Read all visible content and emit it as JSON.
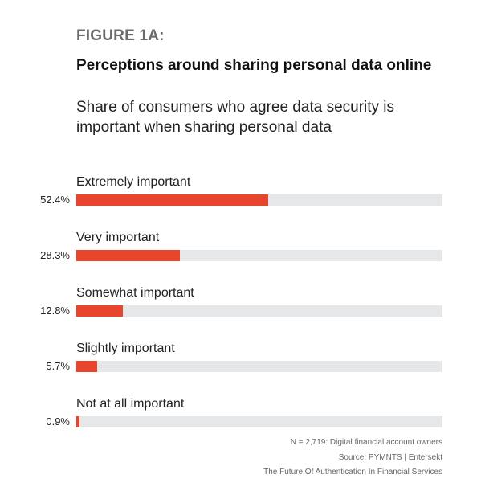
{
  "figure_label": "FIGURE 1A:",
  "chart_data": {
    "type": "bar",
    "orientation": "horizontal",
    "title": "Perceptions around sharing personal data online",
    "subtitle": "Share of consumers who agree data security is important when sharing personal data",
    "categories": [
      "Extremely important",
      "Very important",
      "Somewhat important",
      "Slightly important",
      "Not at all important"
    ],
    "values": [
      52.4,
      28.3,
      12.8,
      5.7,
      0.9
    ],
    "value_labels": [
      "52.4%",
      "28.3%",
      "12.8%",
      "5.7%",
      "0.9%"
    ],
    "xlim": [
      0,
      100
    ],
    "bar_color": "#e8452e",
    "track_color": "#e6e7e8",
    "grid": false
  },
  "footnotes": {
    "sample": "N = 2,719: Digital financial account owners",
    "source": "Source: PYMNTS  |  Entersekt",
    "report": "The Future Of Authentication In Financial Services"
  }
}
